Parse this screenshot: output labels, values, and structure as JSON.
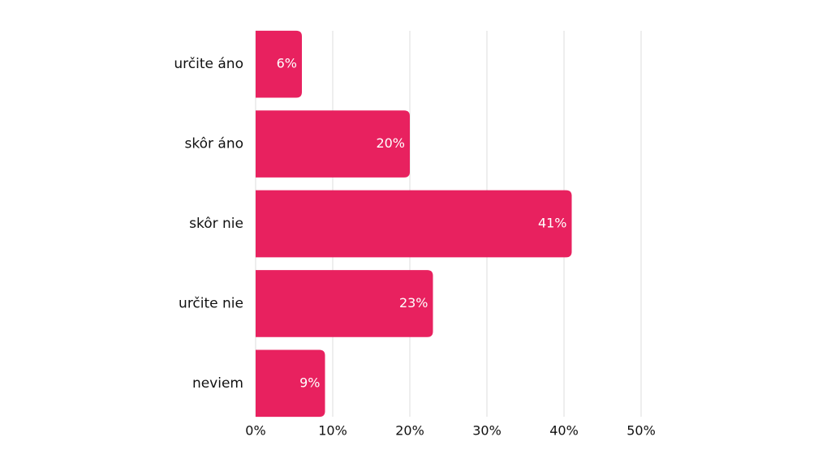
{
  "chart_data": {
    "type": "bar",
    "orientation": "horizontal",
    "categories": [
      "určite áno",
      "skôr áno",
      "skôr nie",
      "určite nie",
      "neviem"
    ],
    "values": [
      6,
      20,
      41,
      23,
      9
    ],
    "value_labels": [
      "6%",
      "20%",
      "41%",
      "23%",
      "9%"
    ],
    "color": "#e8215f",
    "xlim": [
      0,
      50
    ],
    "xticks": [
      {
        "value": 0,
        "label": "0%"
      },
      {
        "value": 10,
        "label": "10%"
      },
      {
        "value": 20,
        "label": "20%"
      },
      {
        "value": 30,
        "label": "30%"
      },
      {
        "value": 40,
        "label": "40%"
      },
      {
        "value": 50,
        "label": "50%"
      }
    ],
    "grid": true
  }
}
